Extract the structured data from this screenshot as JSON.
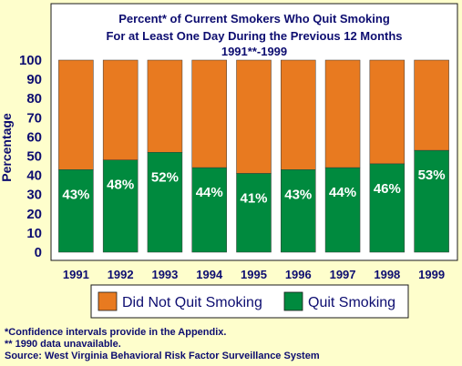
{
  "chart_data": {
    "type": "bar",
    "stacked": true,
    "title_lines": [
      "Percent* of Current Smokers Who Quit Smoking",
      "For at Least One Day During the Previous 12 Months",
      "1991**-1999"
    ],
    "ylabel": "Percentage",
    "ylim": [
      0,
      100
    ],
    "yticks": [
      "0",
      "10",
      "20",
      "30",
      "40",
      "50",
      "60",
      "70",
      "80",
      "90",
      "100"
    ],
    "categories": [
      "1991",
      "1992",
      "1993",
      "1994",
      "1995",
      "1996",
      "1997",
      "1998",
      "1999"
    ],
    "series": [
      {
        "name": "Quit Smoking",
        "values": [
          43,
          48,
          52,
          44,
          41,
          43,
          44,
          46,
          53
        ],
        "labels": [
          "43%",
          "48%",
          "52%",
          "44%",
          "41%",
          "43%",
          "44%",
          "46%",
          "53%"
        ],
        "color": "#008a3e"
      },
      {
        "name": "Did Not Quit Smoking",
        "values": [
          57,
          52,
          48,
          56,
          59,
          57,
          56,
          54,
          47
        ],
        "color": "#e87a20"
      }
    ],
    "legend": {
      "position": "bottom",
      "items": [
        "Did Not Quit Smoking",
        "Quit Smoking"
      ]
    },
    "grid": false
  },
  "colors": {
    "background": "#fefecc",
    "text": "#0d0d70",
    "plot_background": "#ffffff",
    "quit": "#008a3e",
    "not_quit": "#e87a20"
  },
  "footnotes": [
    "*Confidence intervals provide in the Appendix.",
    "** 1990 data unavailable.",
    "Source: West Virginia Behavioral Risk Factor Surveillance System"
  ]
}
